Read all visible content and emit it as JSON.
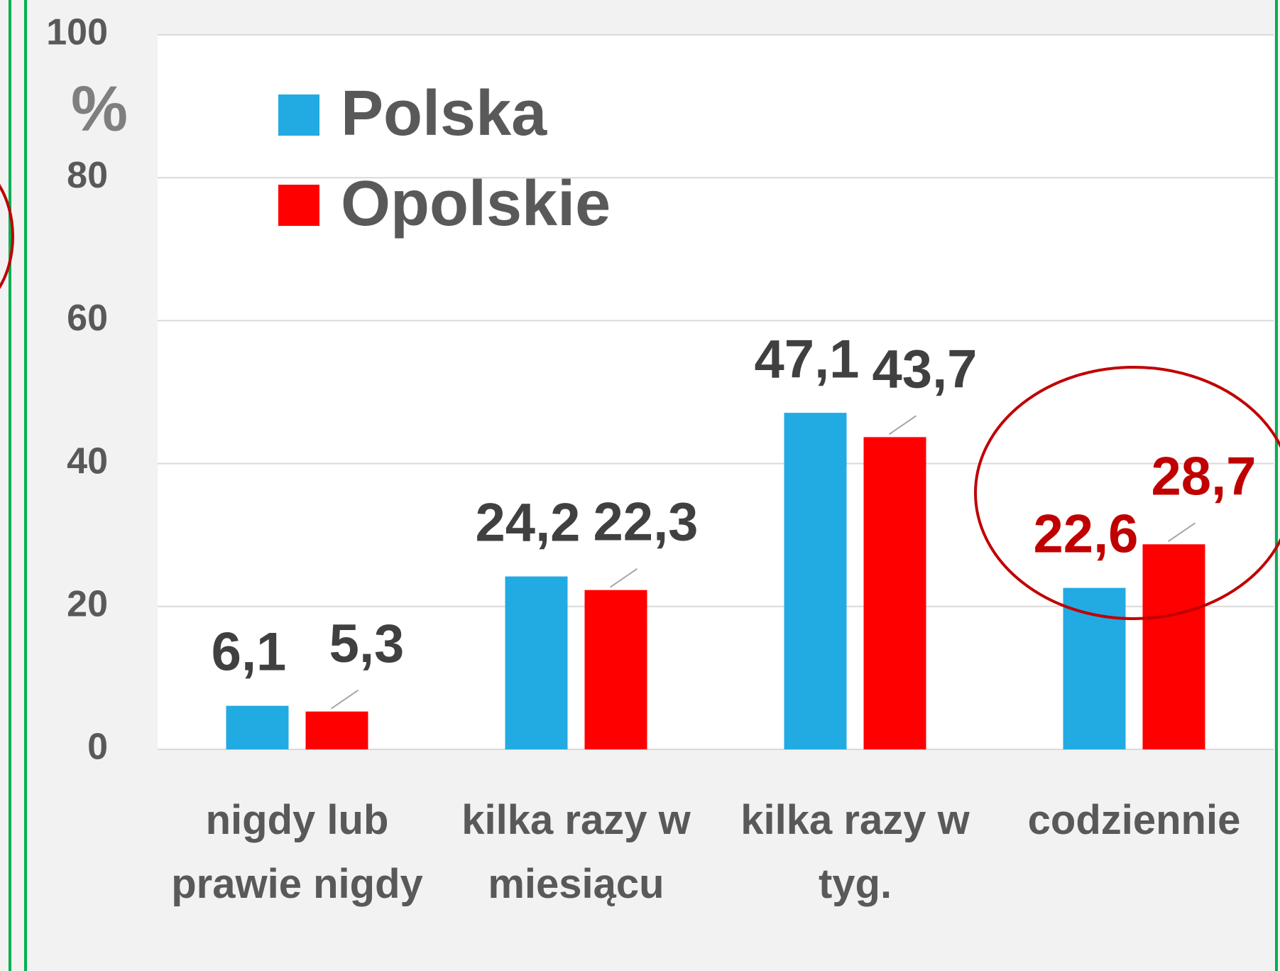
{
  "chart_data": {
    "type": "bar",
    "categories": [
      "nigdy lub prawie nigdy",
      "kilka razy w miesiącu",
      "kilka razy w tyg.",
      "codziennie"
    ],
    "series": [
      {
        "name": "Polska",
        "color": "#21abe2",
        "values": [
          6.1,
          24.2,
          47.1,
          22.6
        ],
        "value_labels": [
          "6,1",
          "24,2",
          "47,1",
          "22,6"
        ],
        "label_colors": [
          "#404040",
          "#404040",
          "#404040",
          "#c00000"
        ]
      },
      {
        "name": "Opolskie",
        "color": "#ff0000",
        "values": [
          5.3,
          22.3,
          43.7,
          28.7
        ],
        "value_labels": [
          "5,3",
          "22,3",
          "43,7",
          "28,7"
        ],
        "label_colors": [
          "#404040",
          "#404040",
          "#404040",
          "#c00000"
        ]
      }
    ],
    "ylabel": "%",
    "ylim": [
      0,
      100
    ],
    "yticks": [
      0,
      20,
      40,
      60,
      80,
      100
    ],
    "grid": true,
    "legend": "upper left"
  }
}
